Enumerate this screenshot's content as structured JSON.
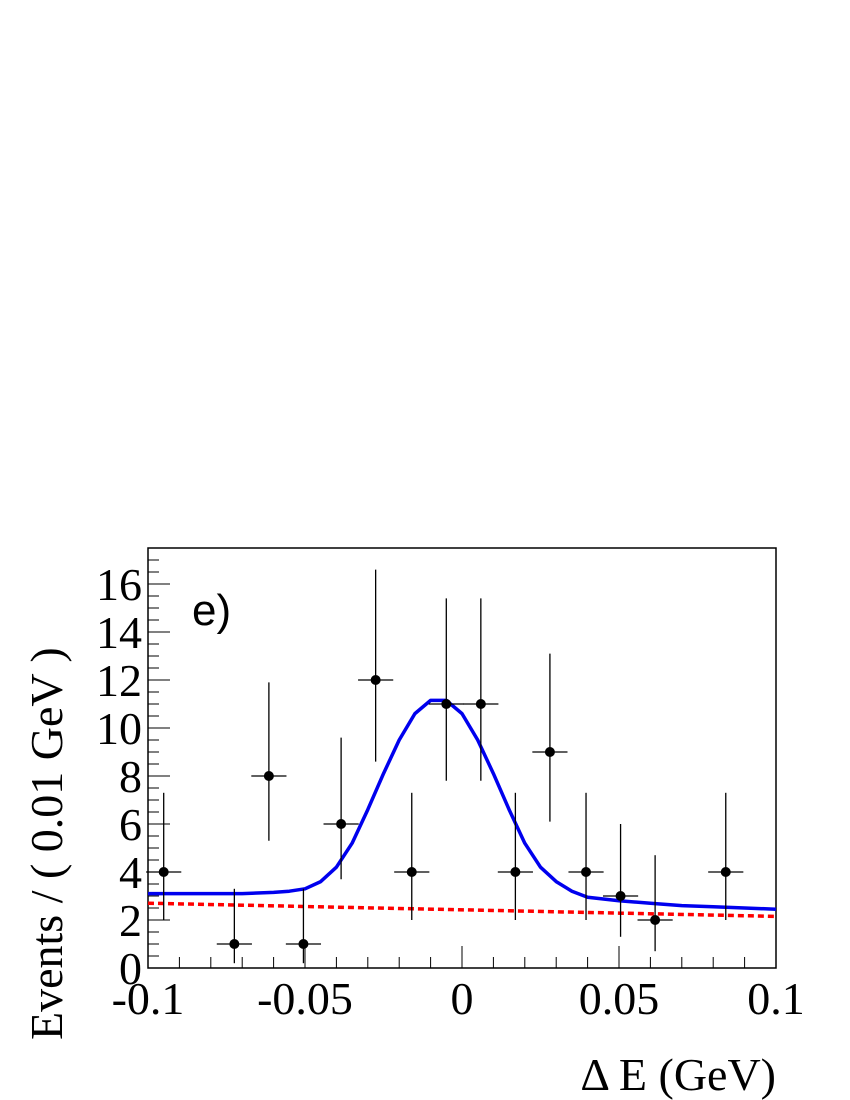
{
  "chart_data": {
    "type": "scatter",
    "panel_label": "e)",
    "xlabel": "Δ E (GeV)",
    "ylabel": "Events / ( 0.01 GeV )",
    "xlim": [
      -0.1,
      0.1
    ],
    "ylim": [
      0,
      17.5
    ],
    "x_ticks": [
      {
        "v": -0.1,
        "label": "-0.1"
      },
      {
        "v": -0.05,
        "label": "-0.05"
      },
      {
        "v": 0,
        "label": "0"
      },
      {
        "v": 0.05,
        "label": "0.05"
      },
      {
        "v": 0.1,
        "label": "0.1"
      }
    ],
    "y_ticks": [
      {
        "v": 0,
        "label": "0"
      },
      {
        "v": 2,
        "label": "2"
      },
      {
        "v": 4,
        "label": "4"
      },
      {
        "v": 6,
        "label": "6"
      },
      {
        "v": 8,
        "label": "8"
      },
      {
        "v": 10,
        "label": "10"
      },
      {
        "v": 12,
        "label": "12"
      },
      {
        "v": 14,
        "label": "14"
      },
      {
        "v": 16,
        "label": "16"
      }
    ],
    "data_points": [
      {
        "x": -0.095,
        "y": 4,
        "xerr": 0.0056,
        "ylo": 2.0,
        "yhi": 7.3
      },
      {
        "x": -0.0725,
        "y": 1,
        "xerr": 0.0056,
        "ylo": 0.2,
        "yhi": 3.3
      },
      {
        "x": -0.0615,
        "y": 8,
        "xerr": 0.0056,
        "ylo": 5.3,
        "yhi": 11.9
      },
      {
        "x": -0.0505,
        "y": 1,
        "xerr": 0.0056,
        "ylo": 0.2,
        "yhi": 3.3
      },
      {
        "x": -0.0385,
        "y": 6,
        "xerr": 0.0056,
        "ylo": 3.7,
        "yhi": 9.6
      },
      {
        "x": -0.0275,
        "y": 12,
        "xerr": 0.0056,
        "ylo": 8.6,
        "yhi": 16.6
      },
      {
        "x": -0.016,
        "y": 4,
        "xerr": 0.0056,
        "ylo": 2.0,
        "yhi": 7.3
      },
      {
        "x": -0.005,
        "y": 11,
        "xerr": 0.0056,
        "ylo": 7.8,
        "yhi": 15.4
      },
      {
        "x": 0.006,
        "y": 11,
        "xerr": 0.0056,
        "ylo": 7.8,
        "yhi": 15.4
      },
      {
        "x": 0.017,
        "y": 4,
        "xerr": 0.0056,
        "ylo": 2.0,
        "yhi": 7.3
      },
      {
        "x": 0.028,
        "y": 9,
        "xerr": 0.0056,
        "ylo": 6.1,
        "yhi": 13.1
      },
      {
        "x": 0.0395,
        "y": 4,
        "xerr": 0.0056,
        "ylo": 2.0,
        "yhi": 7.3
      },
      {
        "x": 0.0505,
        "y": 3,
        "xerr": 0.0056,
        "ylo": 1.3,
        "yhi": 6.0
      },
      {
        "x": 0.0615,
        "y": 2,
        "xerr": 0.0056,
        "ylo": 0.7,
        "yhi": 4.7
      },
      {
        "x": 0.084,
        "y": 4,
        "xerr": 0.0056,
        "ylo": 2.0,
        "yhi": 7.3
      }
    ],
    "series": [
      {
        "style": "solid",
        "color": "#0000ee",
        "x": [
          -0.1,
          -0.09,
          -0.08,
          -0.07,
          -0.06,
          -0.055,
          -0.05,
          -0.045,
          -0.04,
          -0.035,
          -0.03,
          -0.025,
          -0.02,
          -0.015,
          -0.01,
          -0.005,
          0.0,
          0.005,
          0.01,
          0.015,
          0.02,
          0.025,
          0.03,
          0.035,
          0.04,
          0.05,
          0.06,
          0.07,
          0.08,
          0.09,
          0.1
        ],
        "y": [
          3.1,
          3.1,
          3.1,
          3.1,
          3.15,
          3.2,
          3.3,
          3.6,
          4.2,
          5.2,
          6.6,
          8.1,
          9.5,
          10.6,
          11.15,
          11.15,
          10.6,
          9.5,
          8.1,
          6.6,
          5.2,
          4.2,
          3.6,
          3.2,
          2.95,
          2.8,
          2.7,
          2.6,
          2.55,
          2.5,
          2.45
        ]
      },
      {
        "style": "dashed",
        "color": "#ff0000",
        "x": [
          -0.1,
          0.1
        ],
        "y": [
          2.7,
          2.15
        ]
      }
    ]
  }
}
